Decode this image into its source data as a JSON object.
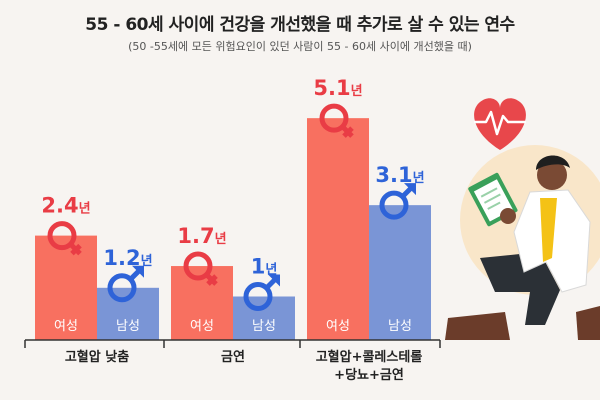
{
  "header": {
    "title": "55 - 60세 사이에 건강을 개선했을 때 추가로 살 수 있는 연수",
    "subtitle": "(50 -55세에 모든 위험요인이 있던 사람이 55 - 60세 사이에 개선했을 때)"
  },
  "colors": {
    "female": "#f87060",
    "male": "#7a95d6",
    "female_text": "#e93c45",
    "male_text": "#2e63d8"
  },
  "chart_data": {
    "type": "bar",
    "categories": [
      "고혈압 낮춤",
      "금연",
      "고혈압+콜레스테롤 +당뇨+금연"
    ],
    "category_lines": [
      [
        "고혈압 낮춤"
      ],
      [
        "금연"
      ],
      [
        "고혈압+콜레스테롤",
        "+당뇨+금연"
      ]
    ],
    "unit": "년",
    "series": [
      {
        "name": "여성",
        "values": [
          2.4,
          1.7,
          5.1
        ],
        "value_labels": [
          "2.4",
          "1.7",
          "5.1"
        ]
      },
      {
        "name": "남성",
        "values": [
          1.2,
          1.0,
          3.1
        ],
        "value_labels": [
          "1.2",
          "1",
          "3.1"
        ]
      }
    ],
    "ylim": [
      0,
      5.5
    ]
  }
}
